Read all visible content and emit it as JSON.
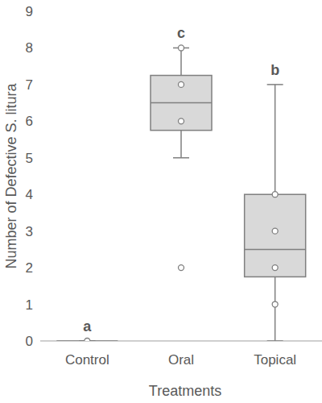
{
  "chart_data": {
    "type": "box",
    "x_label": "Treatments",
    "y_label": "Number of Defective S. litura",
    "categories": [
      "Control",
      "Oral",
      "Topical"
    ],
    "boxes": [
      {
        "min": 0,
        "q1": 0,
        "median": 0,
        "q3": 0,
        "max": 0,
        "points": [
          0
        ],
        "letter": "a"
      },
      {
        "min": 5,
        "q1": 5.75,
        "median": 6.5,
        "q3": 7.25,
        "max": 8,
        "points": [
          8,
          7,
          6,
          2
        ],
        "letter": "c"
      },
      {
        "min": 0,
        "q1": 1.75,
        "median": 2.5,
        "q3": 4,
        "max": 7,
        "points": [
          4,
          3,
          2,
          1
        ],
        "letter": "b"
      }
    ],
    "color": "#d9d9d9",
    "ylim": [
      0,
      9
    ],
    "yticks": [
      0,
      1,
      2,
      3,
      4,
      5,
      6,
      7,
      8,
      9
    ],
    "grid": false
  }
}
